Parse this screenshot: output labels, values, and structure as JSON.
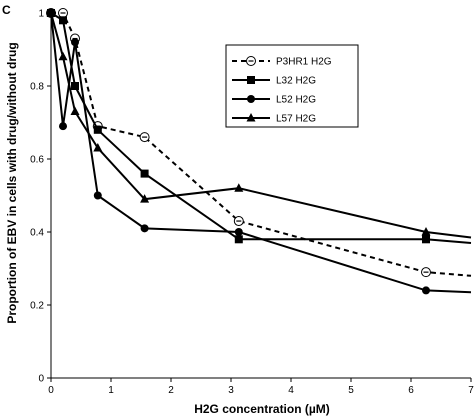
{
  "panel_label": "C",
  "chart_data": {
    "type": "line",
    "xlabel": "H2G concentration (µM)",
    "ylabel": "Proportion of EBV in cells with drug/without drug",
    "xlim": [
      0,
      7
    ],
    "ylim": [
      0,
      1
    ],
    "x_ticks": [
      "0",
      "1",
      "2",
      "3",
      "4",
      "5",
      "6",
      "7"
    ],
    "y_ticks": [
      "0",
      "0.2",
      "0.4",
      "0.6",
      "0.8",
      "1"
    ],
    "grid": false,
    "legend_position": "top-right",
    "series": [
      {
        "name": "P3HR1 H2G",
        "marker": "open-circle",
        "line": "dashed",
        "x": [
          0,
          0.2,
          0.4,
          0.78,
          1.56,
          3.13,
          6.25,
          7.0
        ],
        "y": [
          1.0,
          1.0,
          0.93,
          0.69,
          0.66,
          0.43,
          0.29,
          0.28
        ]
      },
      {
        "name": "L32 H2G",
        "marker": "filled-square",
        "line": "solid",
        "x": [
          0,
          0.2,
          0.4,
          0.78,
          1.56,
          3.13,
          6.25,
          7.0
        ],
        "y": [
          1.0,
          0.98,
          0.8,
          0.68,
          0.56,
          0.38,
          0.38,
          0.37
        ]
      },
      {
        "name": "L52 H2G",
        "marker": "filled-circle",
        "line": "solid",
        "x": [
          0,
          0.2,
          0.4,
          0.78,
          1.56,
          3.13,
          6.25,
          7.0
        ],
        "y": [
          1.0,
          0.69,
          0.92,
          0.5,
          0.41,
          0.4,
          0.24,
          0.235
        ]
      },
      {
        "name": "L57 H2G",
        "marker": "filled-triangle",
        "line": "solid",
        "x": [
          0,
          0.2,
          0.4,
          0.78,
          1.56,
          3.13,
          6.25,
          7.0
        ],
        "y": [
          1.0,
          0.88,
          0.73,
          0.63,
          0.49,
          0.52,
          0.4,
          0.385
        ]
      }
    ]
  }
}
